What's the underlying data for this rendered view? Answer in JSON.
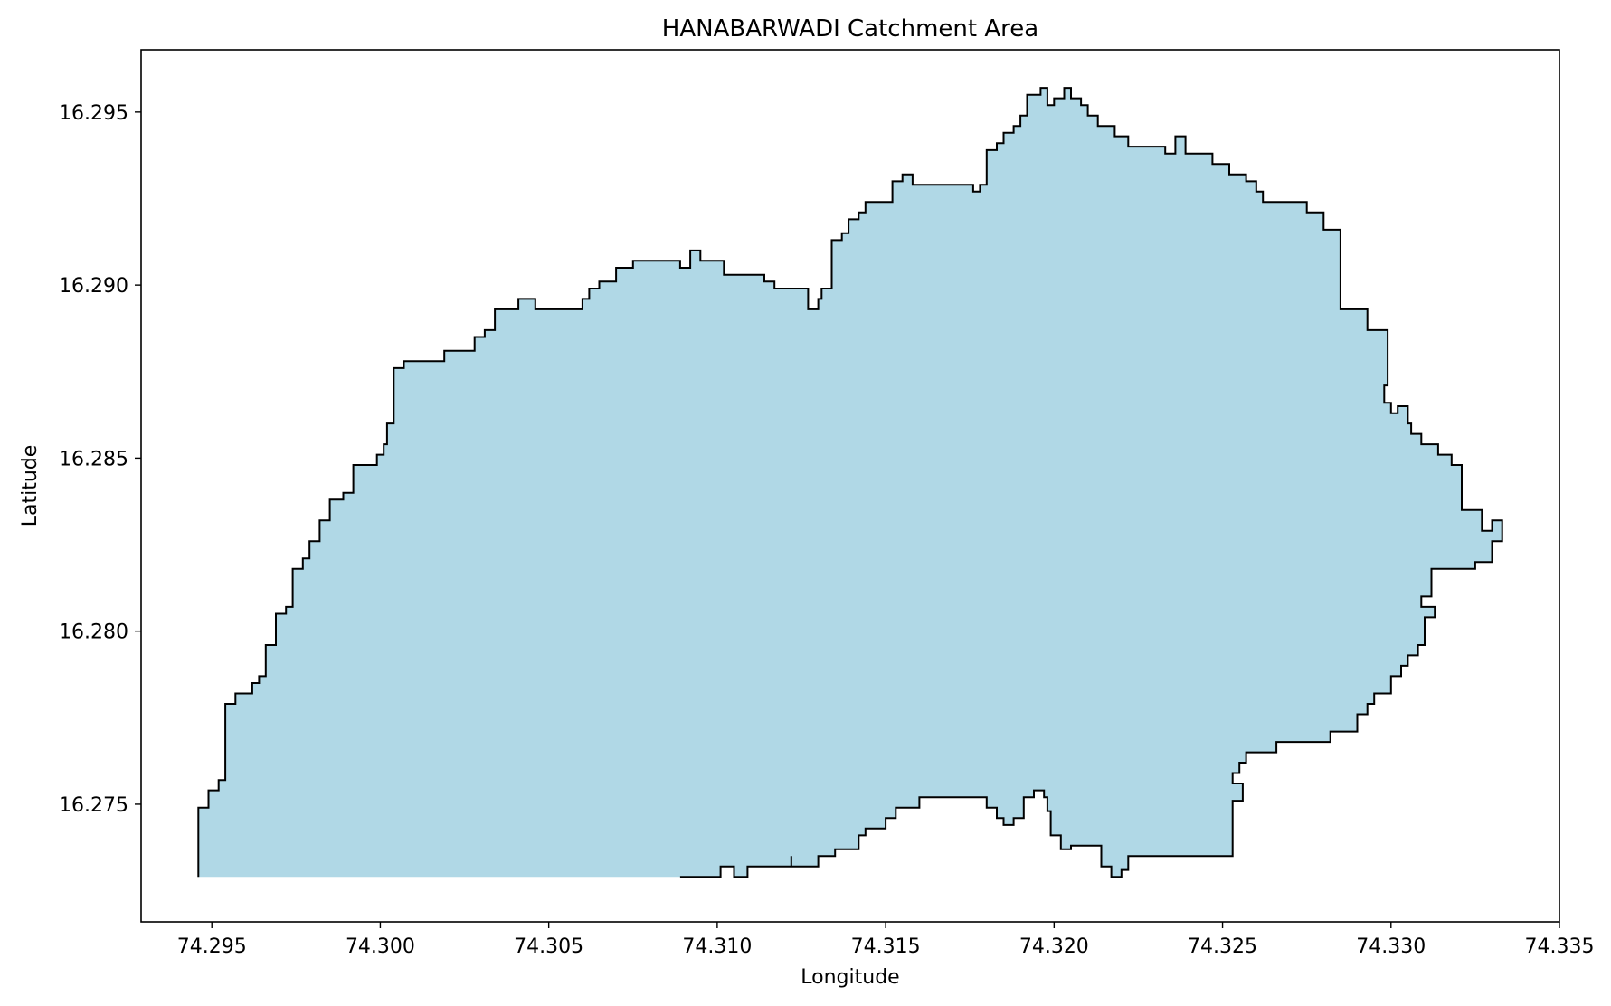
{
  "chart_data": {
    "type": "area",
    "title": "HANABARWADI Catchment Area",
    "xlabel": "Longitude",
    "ylabel": "Latitude",
    "xlim": [
      74.2929,
      74.335
    ],
    "ylim": [
      16.2716,
      16.2968
    ],
    "xticks": [
      "74.295",
      "74.300",
      "74.305",
      "74.310",
      "74.315",
      "74.320",
      "74.325",
      "74.330",
      "74.335"
    ],
    "yticks": [
      "16.275",
      "16.280",
      "16.285",
      "16.290",
      "16.295"
    ],
    "grid": false,
    "legend": "none",
    "fill_color": "#b0d8e6",
    "edge_color": "#000000",
    "polygon": {
      "lon": [
        74.2946,
        74.2946,
        74.2949,
        74.2949,
        74.2952,
        74.2952,
        74.2954,
        74.2954,
        74.2957,
        74.2957,
        74.2962,
        74.2962,
        74.2964,
        74.2964,
        74.2966,
        74.2966,
        74.2969,
        74.2969,
        74.2972,
        74.2972,
        74.2974,
        74.2974,
        74.2977,
        74.2977,
        74.2979,
        74.2979,
        74.2982,
        74.2982,
        74.2985,
        74.2985,
        74.2989,
        74.2989,
        74.2992,
        74.2992,
        74.2999,
        74.2999,
        74.3001,
        74.3001,
        74.3002,
        74.3002,
        74.3004,
        74.3004,
        74.3007,
        74.3007,
        74.3019,
        74.3019,
        74.3028,
        74.3028,
        74.3031,
        74.3031,
        74.3034,
        74.3034,
        74.3041,
        74.3041,
        74.3046,
        74.3046,
        74.306,
        74.306,
        74.3062,
        74.3062,
        74.3065,
        74.3065,
        74.307,
        74.307,
        74.3075,
        74.3075,
        74.3089,
        74.3089,
        74.3092,
        74.3092,
        74.3095,
        74.3095,
        74.3102,
        74.3102,
        74.3114,
        74.3114,
        74.3117,
        74.3117,
        74.3127,
        74.3127,
        74.313,
        74.313,
        74.3131,
        74.3131,
        74.3134,
        74.3134,
        74.3137,
        74.3137,
        74.3139,
        74.3139,
        74.3142,
        74.3142,
        74.3144,
        74.3144,
        74.3152,
        74.3152,
        74.3155,
        74.3155,
        74.3158,
        74.3158,
        74.3176,
        74.3176,
        74.3178,
        74.3178,
        74.318,
        74.318,
        74.3183,
        74.3183,
        74.3185,
        74.3185,
        74.3188,
        74.3188,
        74.319,
        74.319,
        74.3192,
        74.3192,
        74.3196,
        74.3196,
        74.3198,
        74.3198,
        74.32,
        74.32,
        74.3203,
        74.3203,
        74.3205,
        74.3205,
        74.3208,
        74.3208,
        74.321,
        74.321,
        74.3213,
        74.3213,
        74.3218,
        74.3218,
        74.3222,
        74.3222,
        74.3233,
        74.3233,
        74.3236,
        74.3236,
        74.3239,
        74.3239,
        74.3247,
        74.3247,
        74.3252,
        74.3252,
        74.3257,
        74.3257,
        74.326,
        74.326,
        74.3262,
        74.3262,
        74.3275,
        74.3275,
        74.328,
        74.328,
        74.3285,
        74.3285,
        74.3293,
        74.3293,
        74.3299,
        74.3299,
        74.3298,
        74.3298,
        74.33,
        74.33,
        74.3302,
        74.3302,
        74.3305,
        74.3305,
        74.3306,
        74.3306,
        74.3309,
        74.3309,
        74.3314,
        74.3314,
        74.3318,
        74.3318,
        74.3321,
        74.3321,
        74.3327,
        74.3327,
        74.333,
        74.333,
        74.3333,
        74.3333,
        74.333,
        74.333,
        74.3325,
        74.3325,
        74.3312,
        74.3312,
        74.3309,
        74.3309,
        74.3313,
        74.3313,
        74.331,
        74.331,
        74.3308,
        74.3308,
        74.3305,
        74.3305,
        74.3303,
        74.3303,
        74.33,
        74.33,
        74.3295,
        74.3295,
        74.3293,
        74.3293,
        74.329,
        74.329,
        74.3282,
        74.3282,
        74.3266,
        74.3266,
        74.3257,
        74.3257,
        74.3255,
        74.3255,
        74.3253,
        74.3253,
        74.3256,
        74.3256,
        74.3253,
        74.3253,
        74.3253,
        74.3253,
        74.3222,
        74.3222,
        74.322,
        74.322,
        74.3217,
        74.3217,
        74.3214,
        74.3214,
        74.3205,
        74.3205,
        74.3202,
        74.3202,
        74.3199,
        74.3199,
        74.3198,
        74.3198,
        74.3197,
        74.3197,
        74.3194,
        74.3194,
        74.3191,
        74.3191,
        74.3188,
        74.3188,
        74.3185,
        74.3185,
        74.3183,
        74.3183,
        74.318,
        74.318,
        74.316,
        74.316,
        74.3153,
        74.3153,
        74.315,
        74.315,
        74.3144,
        74.3144,
        74.3142,
        74.3142,
        74.3135,
        74.3135,
        74.313,
        74.313,
        74.3122,
        74.3122,
        74.3122,
        74.3122,
        74.3109,
        74.3109,
        74.3105,
        74.3105,
        74.3101,
        74.3101,
        74.3089,
        74.3089,
        74.3087,
        74.3087,
        74.3076,
        74.3076,
        74.3057,
        74.3057,
        74.305,
        74.305,
        74.3046,
        74.3046,
        74.304,
        74.304,
        74.3039,
        74.3039,
        74.3029,
        74.3029,
        74.3016,
        74.3016,
        74.3007,
        74.3007,
        74.3004,
        74.3004,
        74.3,
        74.3,
        74.298,
        74.298,
        74.2977,
        74.2977,
        74.2965,
        74.2965,
        74.296,
        74.296,
        74.2957,
        74.2957,
        74.2946
      ],
      "lat": [
        16.2729,
        16.2749,
        16.2749,
        16.2754,
        16.2754,
        16.2757,
        16.2757,
        16.2779,
        16.2779,
        16.2782,
        16.2782,
        16.2785,
        16.2785,
        16.2787,
        16.2787,
        16.2796,
        16.2796,
        16.2805,
        16.2805,
        16.2807,
        16.2807,
        16.2818,
        16.2818,
        16.2821,
        16.2821,
        16.2826,
        16.2826,
        16.2832,
        16.2832,
        16.2838,
        16.2838,
        16.284,
        16.284,
        16.2848,
        16.2848,
        16.2851,
        16.2851,
        16.2854,
        16.2854,
        16.286,
        16.286,
        16.2876,
        16.2876,
        16.2878,
        16.2878,
        16.2881,
        16.2881,
        16.2885,
        16.2885,
        16.2887,
        16.2887,
        16.2893,
        16.2893,
        16.2896,
        16.2896,
        16.2893,
        16.2893,
        16.2896,
        16.2896,
        16.2899,
        16.2899,
        16.2901,
        16.2901,
        16.2905,
        16.2905,
        16.2907,
        16.2907,
        16.2905,
        16.2905,
        16.291,
        16.291,
        16.2907,
        16.2907,
        16.2903,
        16.2903,
        16.2901,
        16.2901,
        16.2899,
        16.2899,
        16.2893,
        16.2893,
        16.2896,
        16.2896,
        16.2899,
        16.2899,
        16.2913,
        16.2913,
        16.2915,
        16.2915,
        16.2919,
        16.2919,
        16.2921,
        16.2921,
        16.2924,
        16.2924,
        16.293,
        16.293,
        16.2932,
        16.2932,
        16.2929,
        16.2929,
        16.2927,
        16.2927,
        16.2929,
        16.2929,
        16.2939,
        16.2939,
        16.2941,
        16.2941,
        16.2944,
        16.2944,
        16.2946,
        16.2946,
        16.2949,
        16.2949,
        16.2955,
        16.2955,
        16.2957,
        16.2957,
        16.2952,
        16.2952,
        16.2954,
        16.2954,
        16.2957,
        16.2957,
        16.2954,
        16.2954,
        16.2952,
        16.2952,
        16.2949,
        16.2949,
        16.2946,
        16.2946,
        16.2943,
        16.2943,
        16.294,
        16.294,
        16.2938,
        16.2938,
        16.2943,
        16.2943,
        16.2938,
        16.2938,
        16.2935,
        16.2935,
        16.2932,
        16.2932,
        16.293,
        16.293,
        16.2927,
        16.2927,
        16.2924,
        16.2924,
        16.2921,
        16.2921,
        16.2916,
        16.2916,
        16.2893,
        16.2893,
        16.2887,
        16.2887,
        16.2871,
        16.2871,
        16.2866,
        16.2866,
        16.2863,
        16.2863,
        16.2865,
        16.2865,
        16.286,
        16.286,
        16.2857,
        16.2857,
        16.2854,
        16.2854,
        16.2851,
        16.2851,
        16.2848,
        16.2848,
        16.2835,
        16.2835,
        16.2829,
        16.2829,
        16.2832,
        16.2832,
        16.2826,
        16.2826,
        16.282,
        16.282,
        16.2818,
        16.2818,
        16.281,
        16.281,
        16.2807,
        16.2807,
        16.2804,
        16.2804,
        16.2796,
        16.2796,
        16.2793,
        16.2793,
        16.279,
        16.279,
        16.2787,
        16.2787,
        16.2782,
        16.2782,
        16.2779,
        16.2779,
        16.2776,
        16.2776,
        16.2771,
        16.2771,
        16.2768,
        16.2768,
        16.2765,
        16.2765,
        16.2762,
        16.2762,
        16.2759,
        16.2759,
        16.2756,
        16.2756,
        16.2751,
        16.2751,
        16.2738,
        16.2738,
        16.2735,
        16.2735,
        16.2731,
        16.2731,
        16.2729,
        16.2729,
        16.2732,
        16.2732,
        16.2738,
        16.2738,
        16.2737,
        16.2737,
        16.2741,
        16.2741,
        16.2748,
        16.2748,
        16.2752,
        16.2752,
        16.2754,
        16.2754,
        16.2752,
        16.2752,
        16.2746,
        16.2746,
        16.2744,
        16.2744,
        16.2746,
        16.2746,
        16.2749,
        16.2749,
        16.2752,
        16.2752,
        16.2749,
        16.2749,
        16.2746,
        16.2746,
        16.2743,
        16.2743,
        16.2741,
        16.2741,
        16.2737,
        16.2737,
        16.2735,
        16.2735,
        16.2732,
        16.2732,
        16.2735,
        16.2735,
        16.2732,
        16.2732,
        16.2729,
        16.2729,
        16.2732,
        16.2732,
        16.2729,
        16.2729
      ]
    }
  }
}
